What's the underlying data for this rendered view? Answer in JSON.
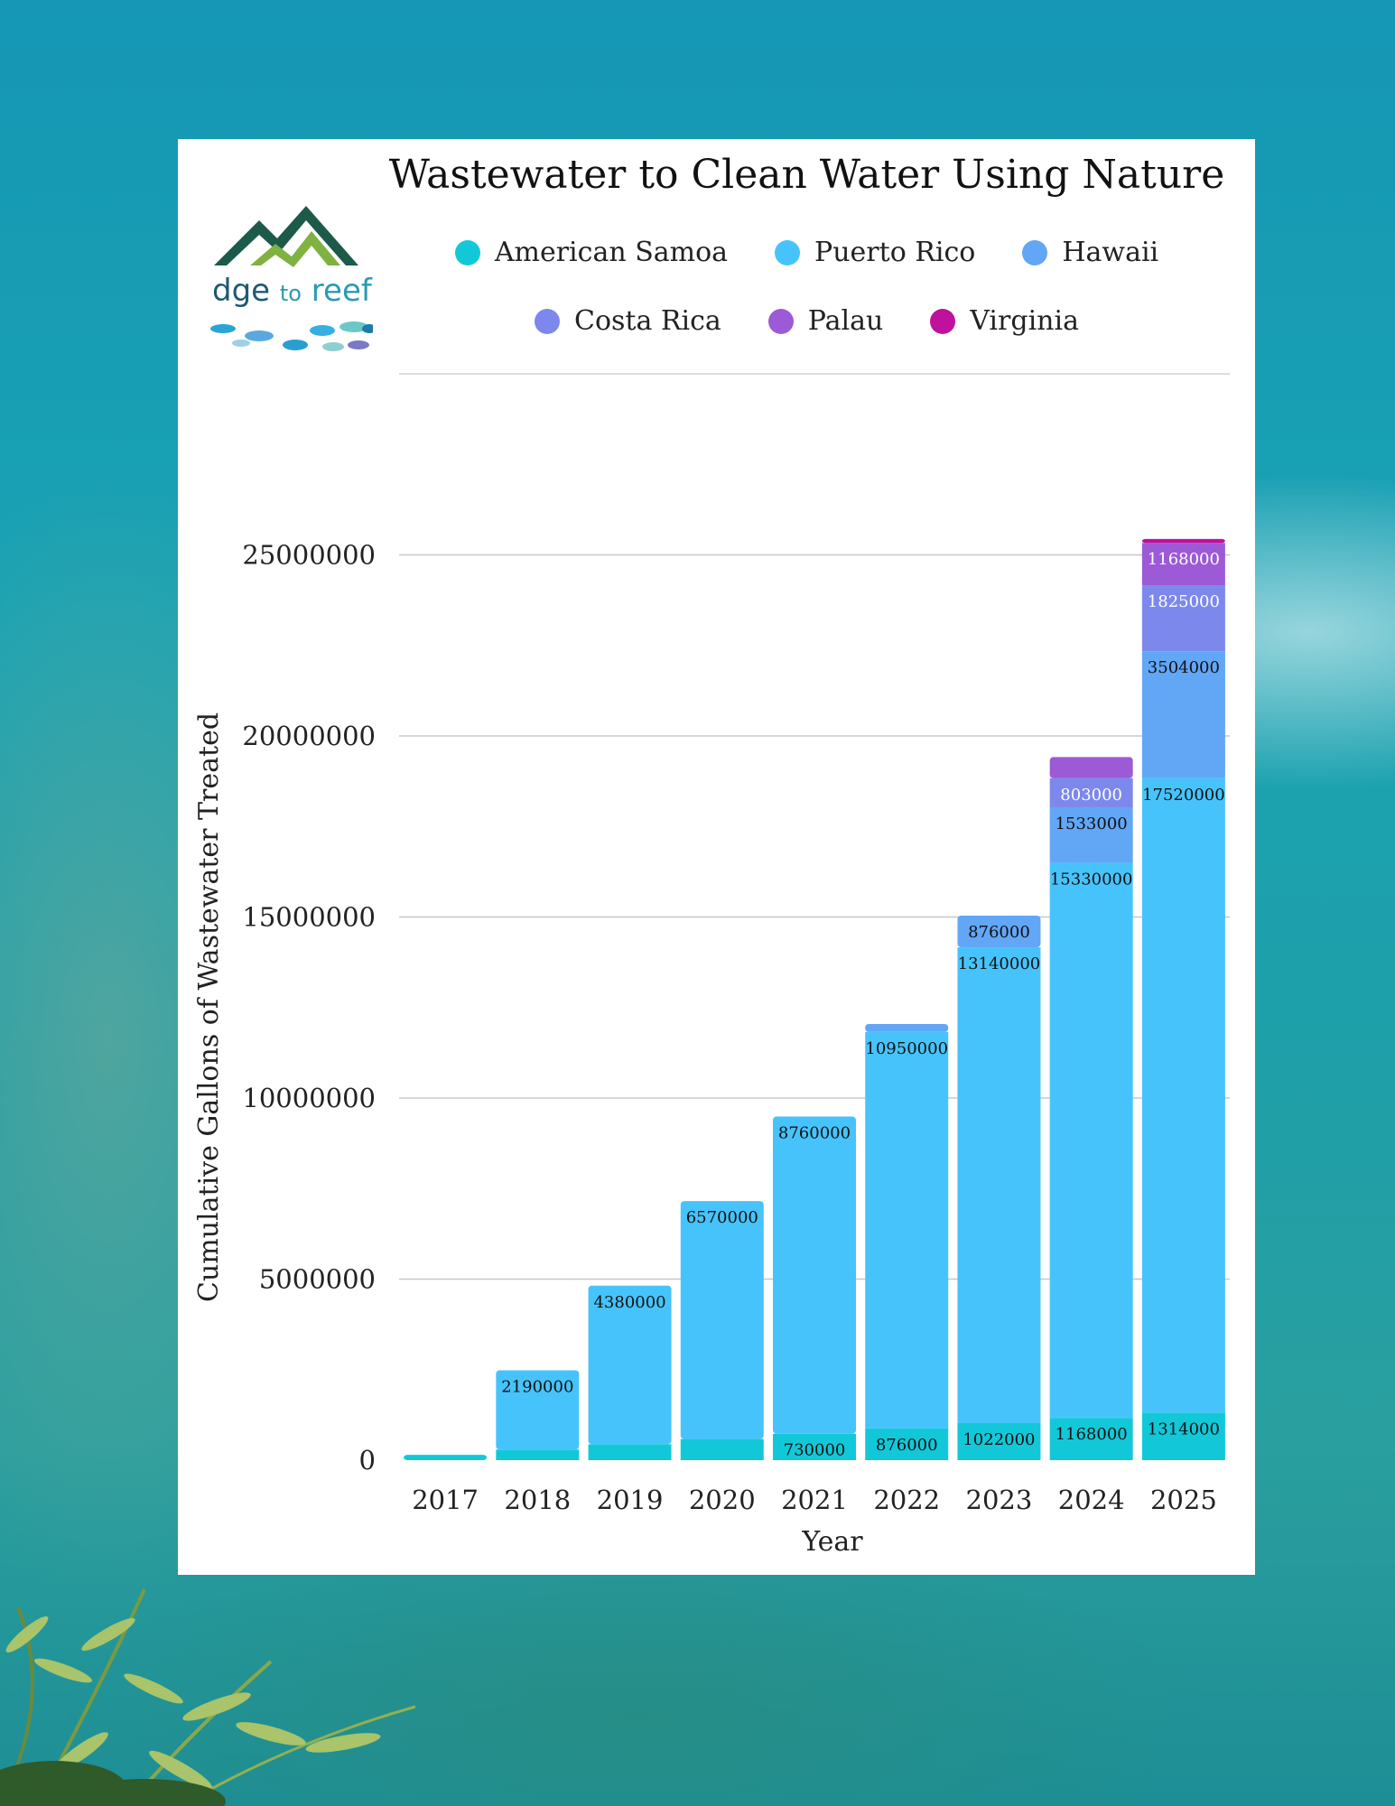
{
  "chart_data": {
    "type": "bar",
    "stacked": true,
    "title": "Wastewater to Clean Water Using Nature",
    "xlabel": "Year",
    "ylabel": "Cumulative Gallons of Wastewater Treated",
    "ylim": [
      0,
      30000000
    ],
    "yticks": [
      0,
      5000000,
      10000000,
      15000000,
      20000000,
      25000000
    ],
    "ytick_labels": [
      "0",
      "5000000",
      "10000000",
      "15000000",
      "20000000",
      "25000000"
    ],
    "grid": true,
    "legend_position": "top",
    "categories": [
      "2017",
      "2018",
      "2019",
      "2020",
      "2021",
      "2022",
      "2023",
      "2024",
      "2025"
    ],
    "series": [
      {
        "name": "American Samoa",
        "color": "#12c8d8",
        "values": [
          146000,
          292000,
          438000,
          584000,
          730000,
          876000,
          1022000,
          1168000,
          1314000
        ],
        "labels": [
          "",
          "",
          "",
          "",
          "730000",
          "876000",
          "1022000",
          "1168000",
          "1314000"
        ]
      },
      {
        "name": "Puerto Rico",
        "color": "#47c3fb",
        "values": [
          0,
          2190000,
          4380000,
          6570000,
          8760000,
          10950000,
          13140000,
          15330000,
          17520000
        ],
        "labels": [
          "",
          "2190000",
          "4380000",
          "6570000",
          "8760000",
          "10950000",
          "13140000",
          "15330000",
          "17520000"
        ]
      },
      {
        "name": "Hawaii",
        "color": "#62a6f6",
        "values": [
          0,
          0,
          0,
          0,
          0,
          219000,
          876000,
          1533000,
          3504000
        ],
        "labels": [
          "",
          "",
          "",
          "",
          "",
          "",
          "876000",
          "1533000",
          "3504000"
        ]
      },
      {
        "name": "Costa Rica",
        "color": "#7c88ec",
        "values": [
          0,
          0,
          0,
          0,
          0,
          0,
          0,
          803000,
          1825000
        ],
        "labels": [
          "",
          "",
          "",
          "",
          "",
          "",
          "",
          "803000",
          "1825000"
        ]
      },
      {
        "name": "Palau",
        "color": "#9c5ad6",
        "values": [
          0,
          0,
          0,
          0,
          0,
          0,
          0,
          584000,
          1168000
        ],
        "labels": [
          "",
          "",
          "",
          "",
          "",
          "",
          "",
          "",
          "1168000"
        ]
      },
      {
        "name": "Virginia",
        "color": "#c0109e",
        "values": [
          0,
          0,
          0,
          0,
          0,
          0,
          0,
          0,
          110000
        ],
        "labels": [
          "",
          "",
          "",
          "",
          "",
          "",
          "",
          "",
          ""
        ]
      }
    ]
  },
  "logo": {
    "part1": "dge ",
    "part2": "to",
    "part3": " reefs"
  }
}
